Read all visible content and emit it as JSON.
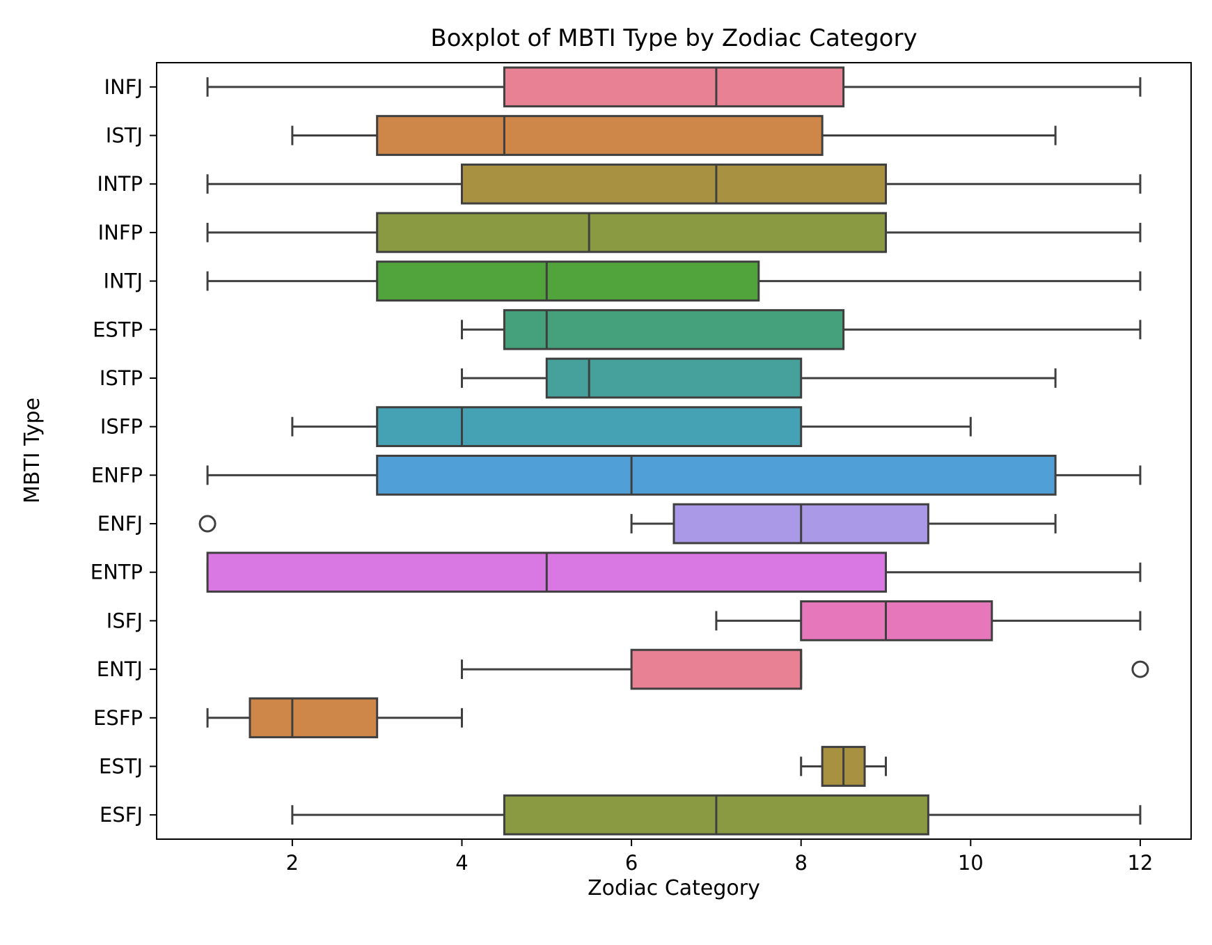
{
  "chart_data": {
    "type": "boxplot",
    "orientation": "horizontal",
    "title": "Boxplot of MBTI Type by Zodiac Category",
    "xlabel": "Zodiac Category",
    "ylabel": "MBTI Type",
    "xlim": [
      0.4,
      12.6
    ],
    "xticks": [
      2,
      4,
      6,
      8,
      10,
      12
    ],
    "grid": false,
    "legend": "none",
    "categories": [
      "INFJ",
      "ISTJ",
      "INTP",
      "INFP",
      "INTJ",
      "ESTP",
      "ISTP",
      "ISFP",
      "ENFP",
      "ENFJ",
      "ENTP",
      "ISFJ",
      "ENTJ",
      "ESFP",
      "ESTJ",
      "ESFJ"
    ],
    "boxes": [
      {
        "category": "INFJ",
        "whisker_low": 1,
        "q1": 4.5,
        "median": 7,
        "q3": 8.5,
        "whisker_high": 12,
        "outliers": [],
        "color": "#e88193"
      },
      {
        "category": "ISTJ",
        "whisker_low": 2,
        "q1": 3,
        "median": 4.5,
        "q3": 8.25,
        "whisker_high": 11,
        "outliers": [],
        "color": "#cf8649"
      },
      {
        "category": "INTP",
        "whisker_low": 1,
        "q1": 4,
        "median": 7,
        "q3": 9,
        "whisker_high": 12,
        "outliers": [],
        "color": "#a99142"
      },
      {
        "category": "INFP",
        "whisker_low": 1,
        "q1": 3,
        "median": 5.5,
        "q3": 9,
        "whisker_high": 12,
        "outliers": [],
        "color": "#8a9a42"
      },
      {
        "category": "INTJ",
        "whisker_low": 1,
        "q1": 3,
        "median": 5,
        "q3": 7.5,
        "whisker_high": 12,
        "outliers": [],
        "color": "#51a43b"
      },
      {
        "category": "ESTP",
        "whisker_low": 4,
        "q1": 4.5,
        "median": 5,
        "q3": 8.5,
        "whisker_high": 12,
        "outliers": [],
        "color": "#44a17b"
      },
      {
        "category": "ISTP",
        "whisker_low": 4,
        "q1": 5,
        "median": 5.5,
        "q3": 8,
        "whisker_high": 11,
        "outliers": [],
        "color": "#46a09b"
      },
      {
        "category": "ISFP",
        "whisker_low": 2,
        "q1": 3,
        "median": 4,
        "q3": 8,
        "whisker_high": 10,
        "outliers": [],
        "color": "#44a2b4"
      },
      {
        "category": "ENFP",
        "whisker_low": 1,
        "q1": 3,
        "median": 6,
        "q3": 11,
        "whisker_high": 12,
        "outliers": [],
        "color": "#509fd6"
      },
      {
        "category": "ENFJ",
        "whisker_low": 6,
        "q1": 6.5,
        "median": 8,
        "q3": 9.5,
        "whisker_high": 11,
        "outliers": [
          1
        ],
        "color": "#aa99e6"
      },
      {
        "category": "ENTP",
        "whisker_low": 1,
        "q1": 1,
        "median": 5,
        "q3": 9,
        "whisker_high": 12,
        "outliers": [],
        "color": "#d977e3"
      },
      {
        "category": "ISFJ",
        "whisker_low": 7,
        "q1": 8,
        "median": 9,
        "q3": 10.25,
        "whisker_high": 12,
        "outliers": [],
        "color": "#e677ba"
      },
      {
        "category": "ENTJ",
        "whisker_low": 4,
        "q1": 6,
        "median": 8,
        "q3": 8,
        "whisker_high": 8,
        "outliers": [
          12
        ],
        "color": "#e88193"
      },
      {
        "category": "ESFP",
        "whisker_low": 1,
        "q1": 1.5,
        "median": 2,
        "q3": 3,
        "whisker_high": 4,
        "outliers": [],
        "color": "#cf8649"
      },
      {
        "category": "ESTJ",
        "whisker_low": 8,
        "q1": 8.25,
        "median": 8.5,
        "q3": 8.75,
        "whisker_high": 9,
        "outliers": [],
        "color": "#a99142"
      },
      {
        "category": "ESFJ",
        "whisker_low": 2,
        "q1": 4.5,
        "median": 7,
        "q3": 9.5,
        "whisker_high": 12,
        "outliers": [],
        "color": "#8a9a42"
      }
    ]
  }
}
